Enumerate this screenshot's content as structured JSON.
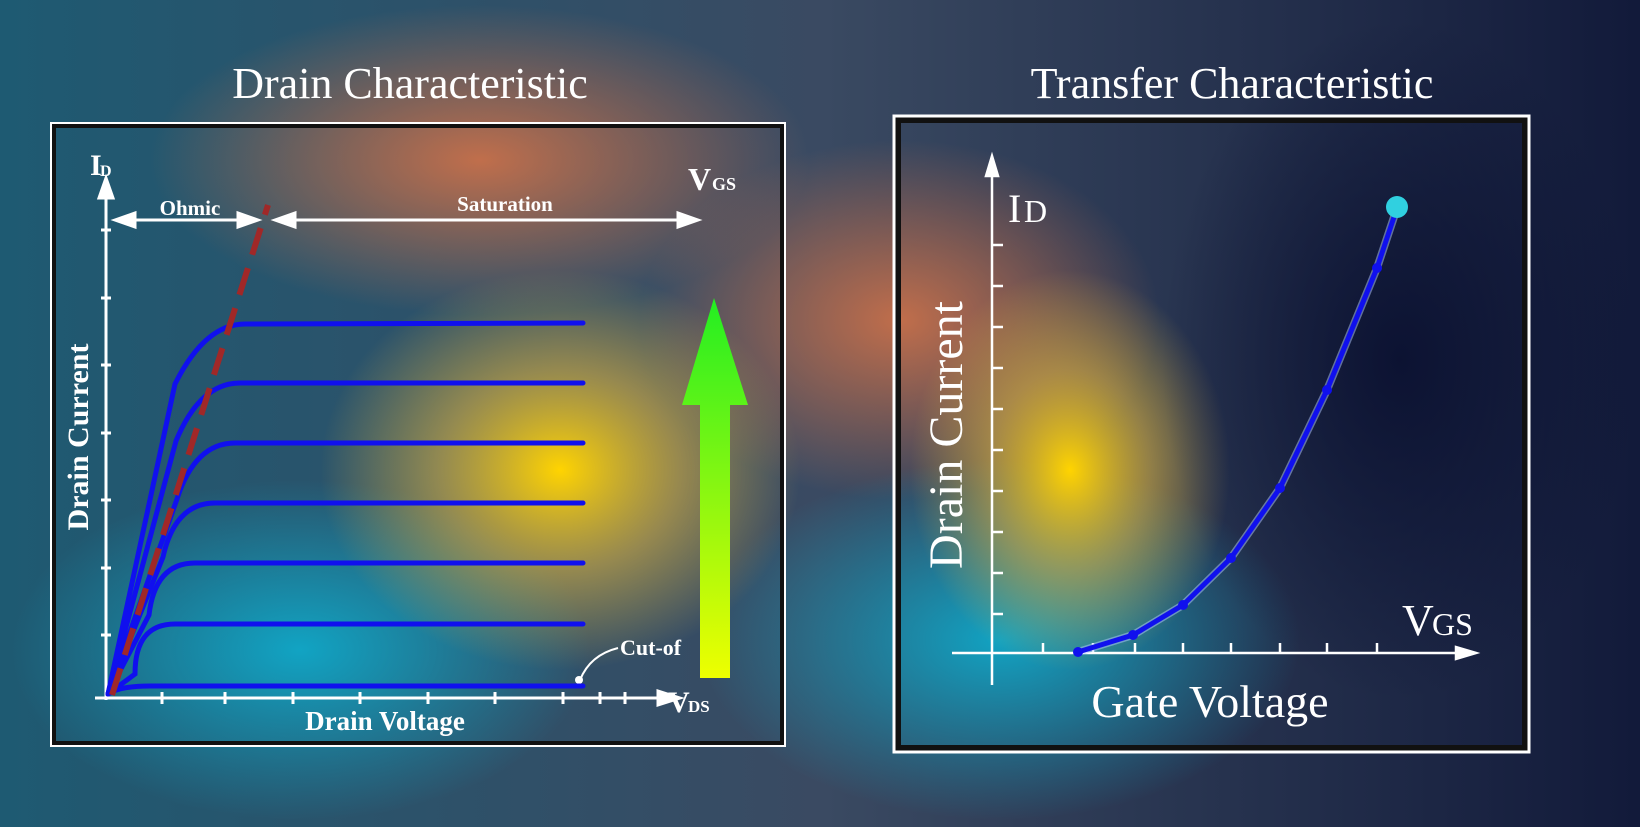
{
  "left": {
    "title": "Drain Characteristic",
    "y_axis_symbol": "I",
    "y_axis_sub": "D",
    "y_axis_label": "Drain Current",
    "x_axis_symbol": "V",
    "x_axis_sub": "DS",
    "x_axis_label": "Drain Voltage",
    "vgs_symbol": "V",
    "vgs_sub": "GS",
    "region_ohmic": "Ohmic",
    "region_saturation": "Saturation",
    "cutoff_label": "Cut-of",
    "curve_count": 7
  },
  "right": {
    "title": "Transfer Characteristic",
    "y_axis_symbol": "I",
    "y_axis_sub": "D",
    "y_axis_label": "Drain Current",
    "x_axis_symbol": "V",
    "x_axis_sub": "GS",
    "x_axis_label": "Gate Voltage"
  },
  "colors": {
    "curve": "#1010ee",
    "dashed": "#a02828",
    "arrow_top": "#22ee22",
    "arrow_bottom": "#eeff00",
    "dot": "#30d0e0"
  }
}
